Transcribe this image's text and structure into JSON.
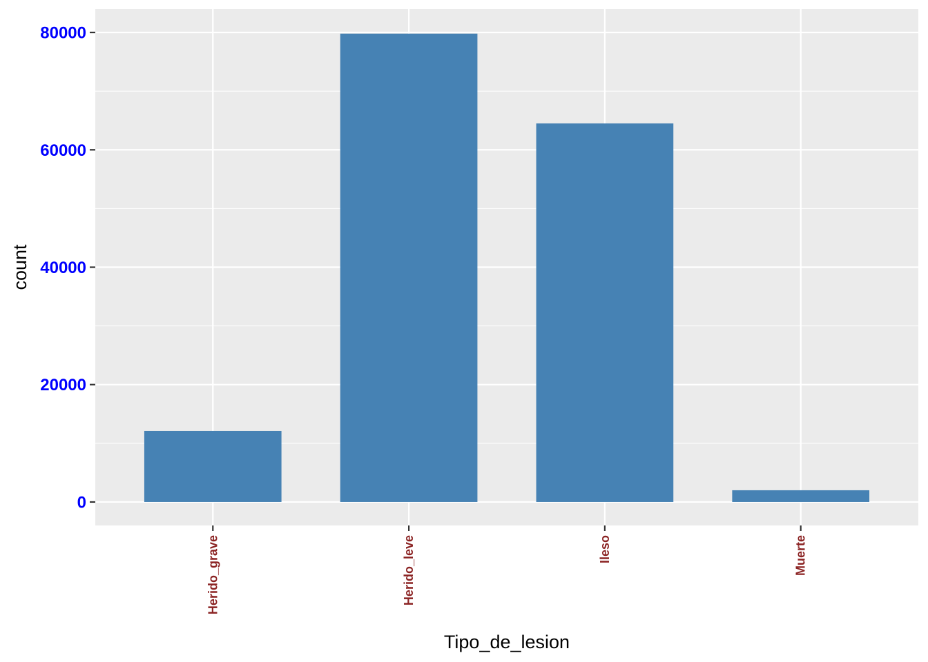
{
  "chart_data": {
    "type": "bar",
    "categories": [
      "Herido_grave",
      "Herido_leve",
      "Ileso",
      "Muerte"
    ],
    "values": [
      12100,
      79800,
      64500,
      2000
    ],
    "xlabel": "Tipo_de_lesion",
    "ylabel": "count",
    "ylim": [
      -4000,
      84000
    ],
    "yticks": [
      0,
      20000,
      40000,
      60000,
      80000
    ],
    "ytick_labels": [
      "0",
      "20000",
      "40000",
      "60000",
      "80000"
    ],
    "grid": true,
    "colors": {
      "bar_fill": "#4682B4",
      "panel_background": "#EBEBEB",
      "grid": "#FFFFFF",
      "y_tick_label": "#0000FF",
      "x_tick_label": "#8B2323"
    }
  }
}
